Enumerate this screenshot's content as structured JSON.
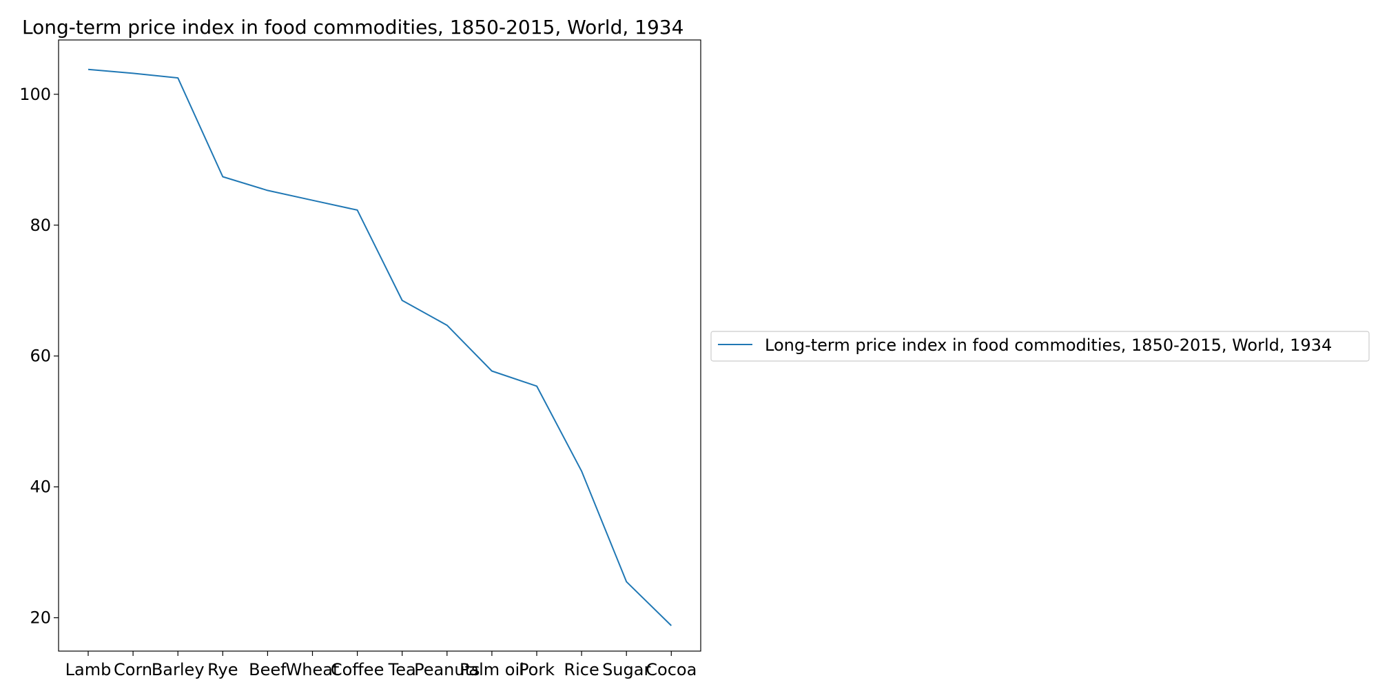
{
  "chart_data": {
    "type": "line",
    "title": "Long-term price index in food commodities, 1850-2015, World, 1934",
    "xlabel": "",
    "ylabel": "",
    "categories": [
      "Lamb",
      "Corn",
      "Barley",
      "Rye",
      "Beef",
      "Wheat",
      "Coffee",
      "Tea",
      "Peanuts",
      "Palm oil",
      "Pork",
      "Rice",
      "Sugar",
      "Cocoa"
    ],
    "series": [
      {
        "name": "Long-term price index in food commodities, 1850-2015, World, 1934",
        "color": "#1f77b4",
        "values": [
          103.8,
          103.2,
          102.5,
          87.4,
          85.3,
          83.8,
          82.3,
          68.5,
          64.7,
          57.7,
          55.4,
          42.4,
          25.5,
          18.8
        ]
      }
    ],
    "ylim": [
      14.9,
      108.3
    ],
    "yticks": [
      20,
      40,
      60,
      80,
      100
    ],
    "grid": false,
    "legend_placement": "center-right outside plot"
  }
}
